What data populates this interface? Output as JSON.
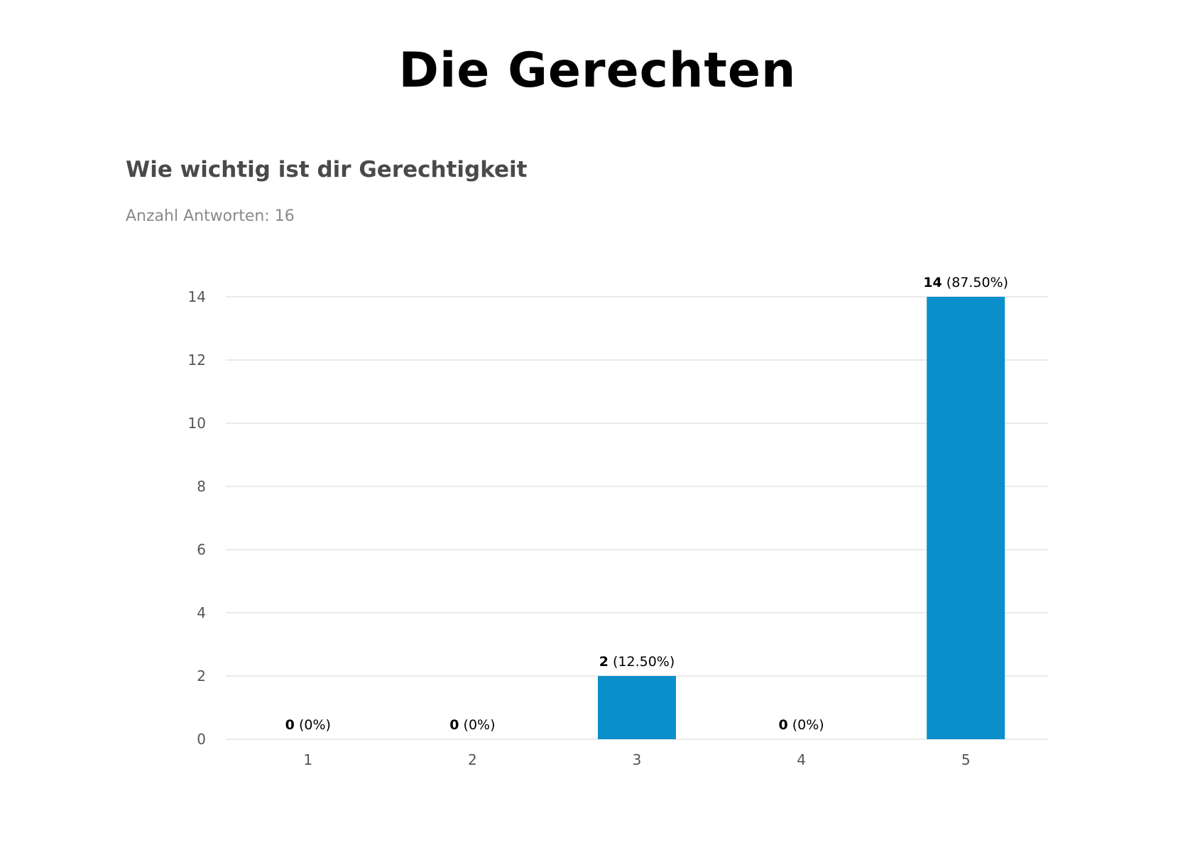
{
  "page": {
    "title": "Die Gerechten"
  },
  "survey": {
    "question": "Wie wichtig ist dir Gerechtigkeit",
    "response_count_text": "Anzahl Antworten: 16"
  },
  "colors": {
    "bar": "#0a8fca",
    "grid": "#e3e3e3",
    "axis_text": "#555555"
  },
  "chart_data": {
    "type": "bar",
    "categories": [
      "1",
      "2",
      "3",
      "4",
      "5"
    ],
    "values": [
      0,
      0,
      2,
      0,
      14
    ],
    "data_labels": [
      {
        "count": "0",
        "percent": "(0%)"
      },
      {
        "count": "0",
        "percent": "(0%)"
      },
      {
        "count": "2",
        "percent": "(12.50%)"
      },
      {
        "count": "0",
        "percent": "(0%)"
      },
      {
        "count": "14",
        "percent": "(87.50%)"
      }
    ],
    "title": "Wie wichtig ist dir Gerechtigkeit",
    "xlabel": "",
    "ylabel": "",
    "ylim": [
      0,
      14
    ],
    "yticks": [
      0,
      2,
      4,
      6,
      8,
      10,
      12,
      14
    ],
    "grid": true,
    "legend": "none"
  }
}
